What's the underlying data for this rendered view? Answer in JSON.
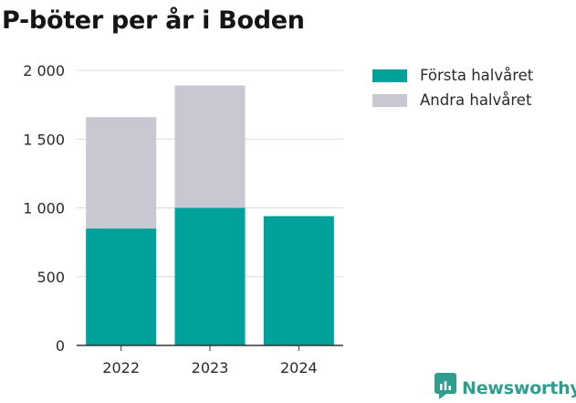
{
  "title": "P-böter per år i Boden",
  "brand": {
    "name": "Newsworthy",
    "color": "#2f9e8f",
    "icon": "newsworthy-logo-icon"
  },
  "chart_data": {
    "type": "bar",
    "stacked": true,
    "title": "P-böter per år i Boden",
    "xlabel": "",
    "ylabel": "",
    "categories": [
      "2022",
      "2023",
      "2024"
    ],
    "series": [
      {
        "name": "Första halvåret",
        "color": "#00a19a",
        "values": [
          850,
          1000,
          940
        ]
      },
      {
        "name": "Andra halvåret",
        "color": "#c8c7d2",
        "values": [
          810,
          890,
          0
        ]
      }
    ],
    "ylim": [
      0,
      2000
    ],
    "yticks": [
      0,
      500,
      1000,
      1500,
      2000
    ],
    "ytick_labels": [
      "0",
      "500",
      "1 000",
      "1 500",
      "2 000"
    ],
    "grid": true,
    "legend_position": "right"
  }
}
